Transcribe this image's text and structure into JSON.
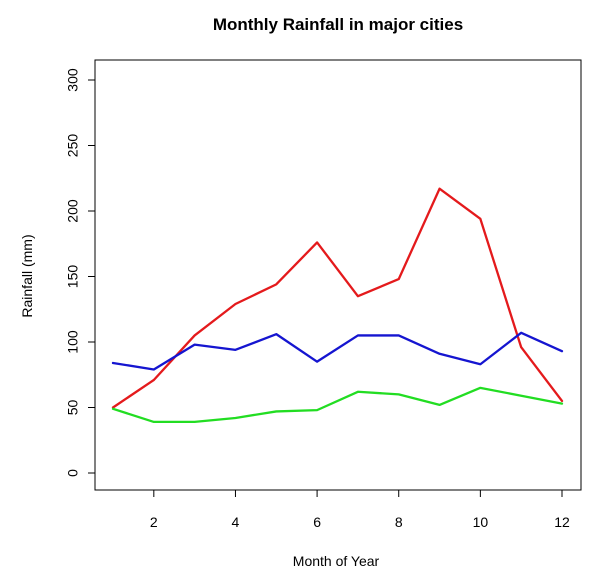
{
  "chart_data": {
    "type": "line",
    "title": "Monthly Rainfall in major cities",
    "xlabel": "Month of Year",
    "ylabel": "Rainfall (mm)",
    "x": [
      1,
      2,
      3,
      4,
      5,
      6,
      7,
      8,
      9,
      10,
      11,
      12
    ],
    "xlim": [
      1,
      12
    ],
    "ylim": [
      0,
      300
    ],
    "xticks": [
      2,
      4,
      6,
      8,
      10,
      12
    ],
    "yticks": [
      0,
      50,
      100,
      150,
      200,
      250,
      300
    ],
    "grid": false,
    "legend": "none",
    "series": [
      {
        "name": "red series",
        "color": "#e41a1c",
        "values": [
          50,
          71,
          105,
          129,
          144,
          176,
          135,
          148,
          217,
          194,
          96,
          55
        ]
      },
      {
        "name": "blue series",
        "color": "#1515d0",
        "values": [
          84,
          79,
          98,
          94,
          106,
          85,
          105,
          105,
          91,
          83,
          107,
          93
        ]
      },
      {
        "name": "green series",
        "color": "#22dd22",
        "values": [
          49,
          39,
          39,
          42,
          47,
          48,
          62,
          60,
          52,
          65,
          59,
          53
        ]
      }
    ]
  }
}
